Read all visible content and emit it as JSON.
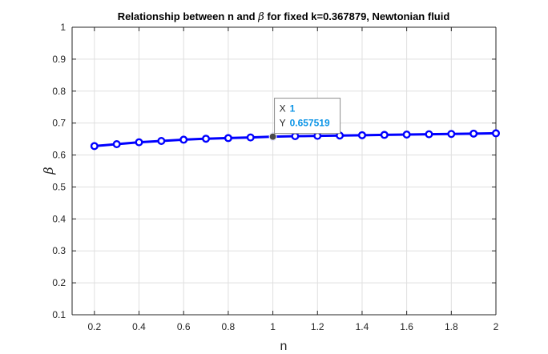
{
  "chart_data": {
    "type": "line",
    "title_prefix": "Relationship between n and ",
    "title_symbol": "β",
    "title_suffix": " for fixed k=0.367879, Newtonian fluid",
    "xlabel": "n",
    "ylabel": "β",
    "xlim": [
      0.1,
      2.0
    ],
    "ylim": [
      0.1,
      1.0
    ],
    "xticks": [
      0.2,
      0.4,
      0.6,
      0.8,
      1.0,
      1.2,
      1.4,
      1.6,
      1.8,
      2.0
    ],
    "xtick_labels": [
      "0.2",
      "0.4",
      "0.6",
      "0.8",
      "1",
      "1.2",
      "1.4",
      "1.6",
      "1.8",
      "2"
    ],
    "yticks": [
      0.1,
      0.2,
      0.3,
      0.4,
      0.5,
      0.6,
      0.7,
      0.8,
      0.9,
      1.0
    ],
    "ytick_labels": [
      "0.1",
      "0.2",
      "0.3",
      "0.4",
      "0.5",
      "0.6",
      "0.7",
      "0.8",
      "0.9",
      "1"
    ],
    "grid": true,
    "series": [
      {
        "color": "#0000ff",
        "marker": "circle",
        "x": [
          0.2,
          0.3,
          0.4,
          0.5,
          0.6,
          0.7,
          0.8,
          0.9,
          1.0,
          1.1,
          1.2,
          1.3,
          1.4,
          1.5,
          1.6,
          1.7,
          1.8,
          1.9,
          2.0
        ],
        "y": [
          0.628,
          0.634,
          0.64,
          0.644,
          0.648,
          0.651,
          0.653,
          0.655,
          0.657519,
          0.659,
          0.66,
          0.661,
          0.662,
          0.663,
          0.664,
          0.665,
          0.666,
          0.667,
          0.668
        ]
      }
    ],
    "datatip": {
      "x_key": "X",
      "x_value": "1",
      "y_key": "Y",
      "y_value": "0.657519",
      "x": 1.0,
      "y": 0.657519
    }
  }
}
